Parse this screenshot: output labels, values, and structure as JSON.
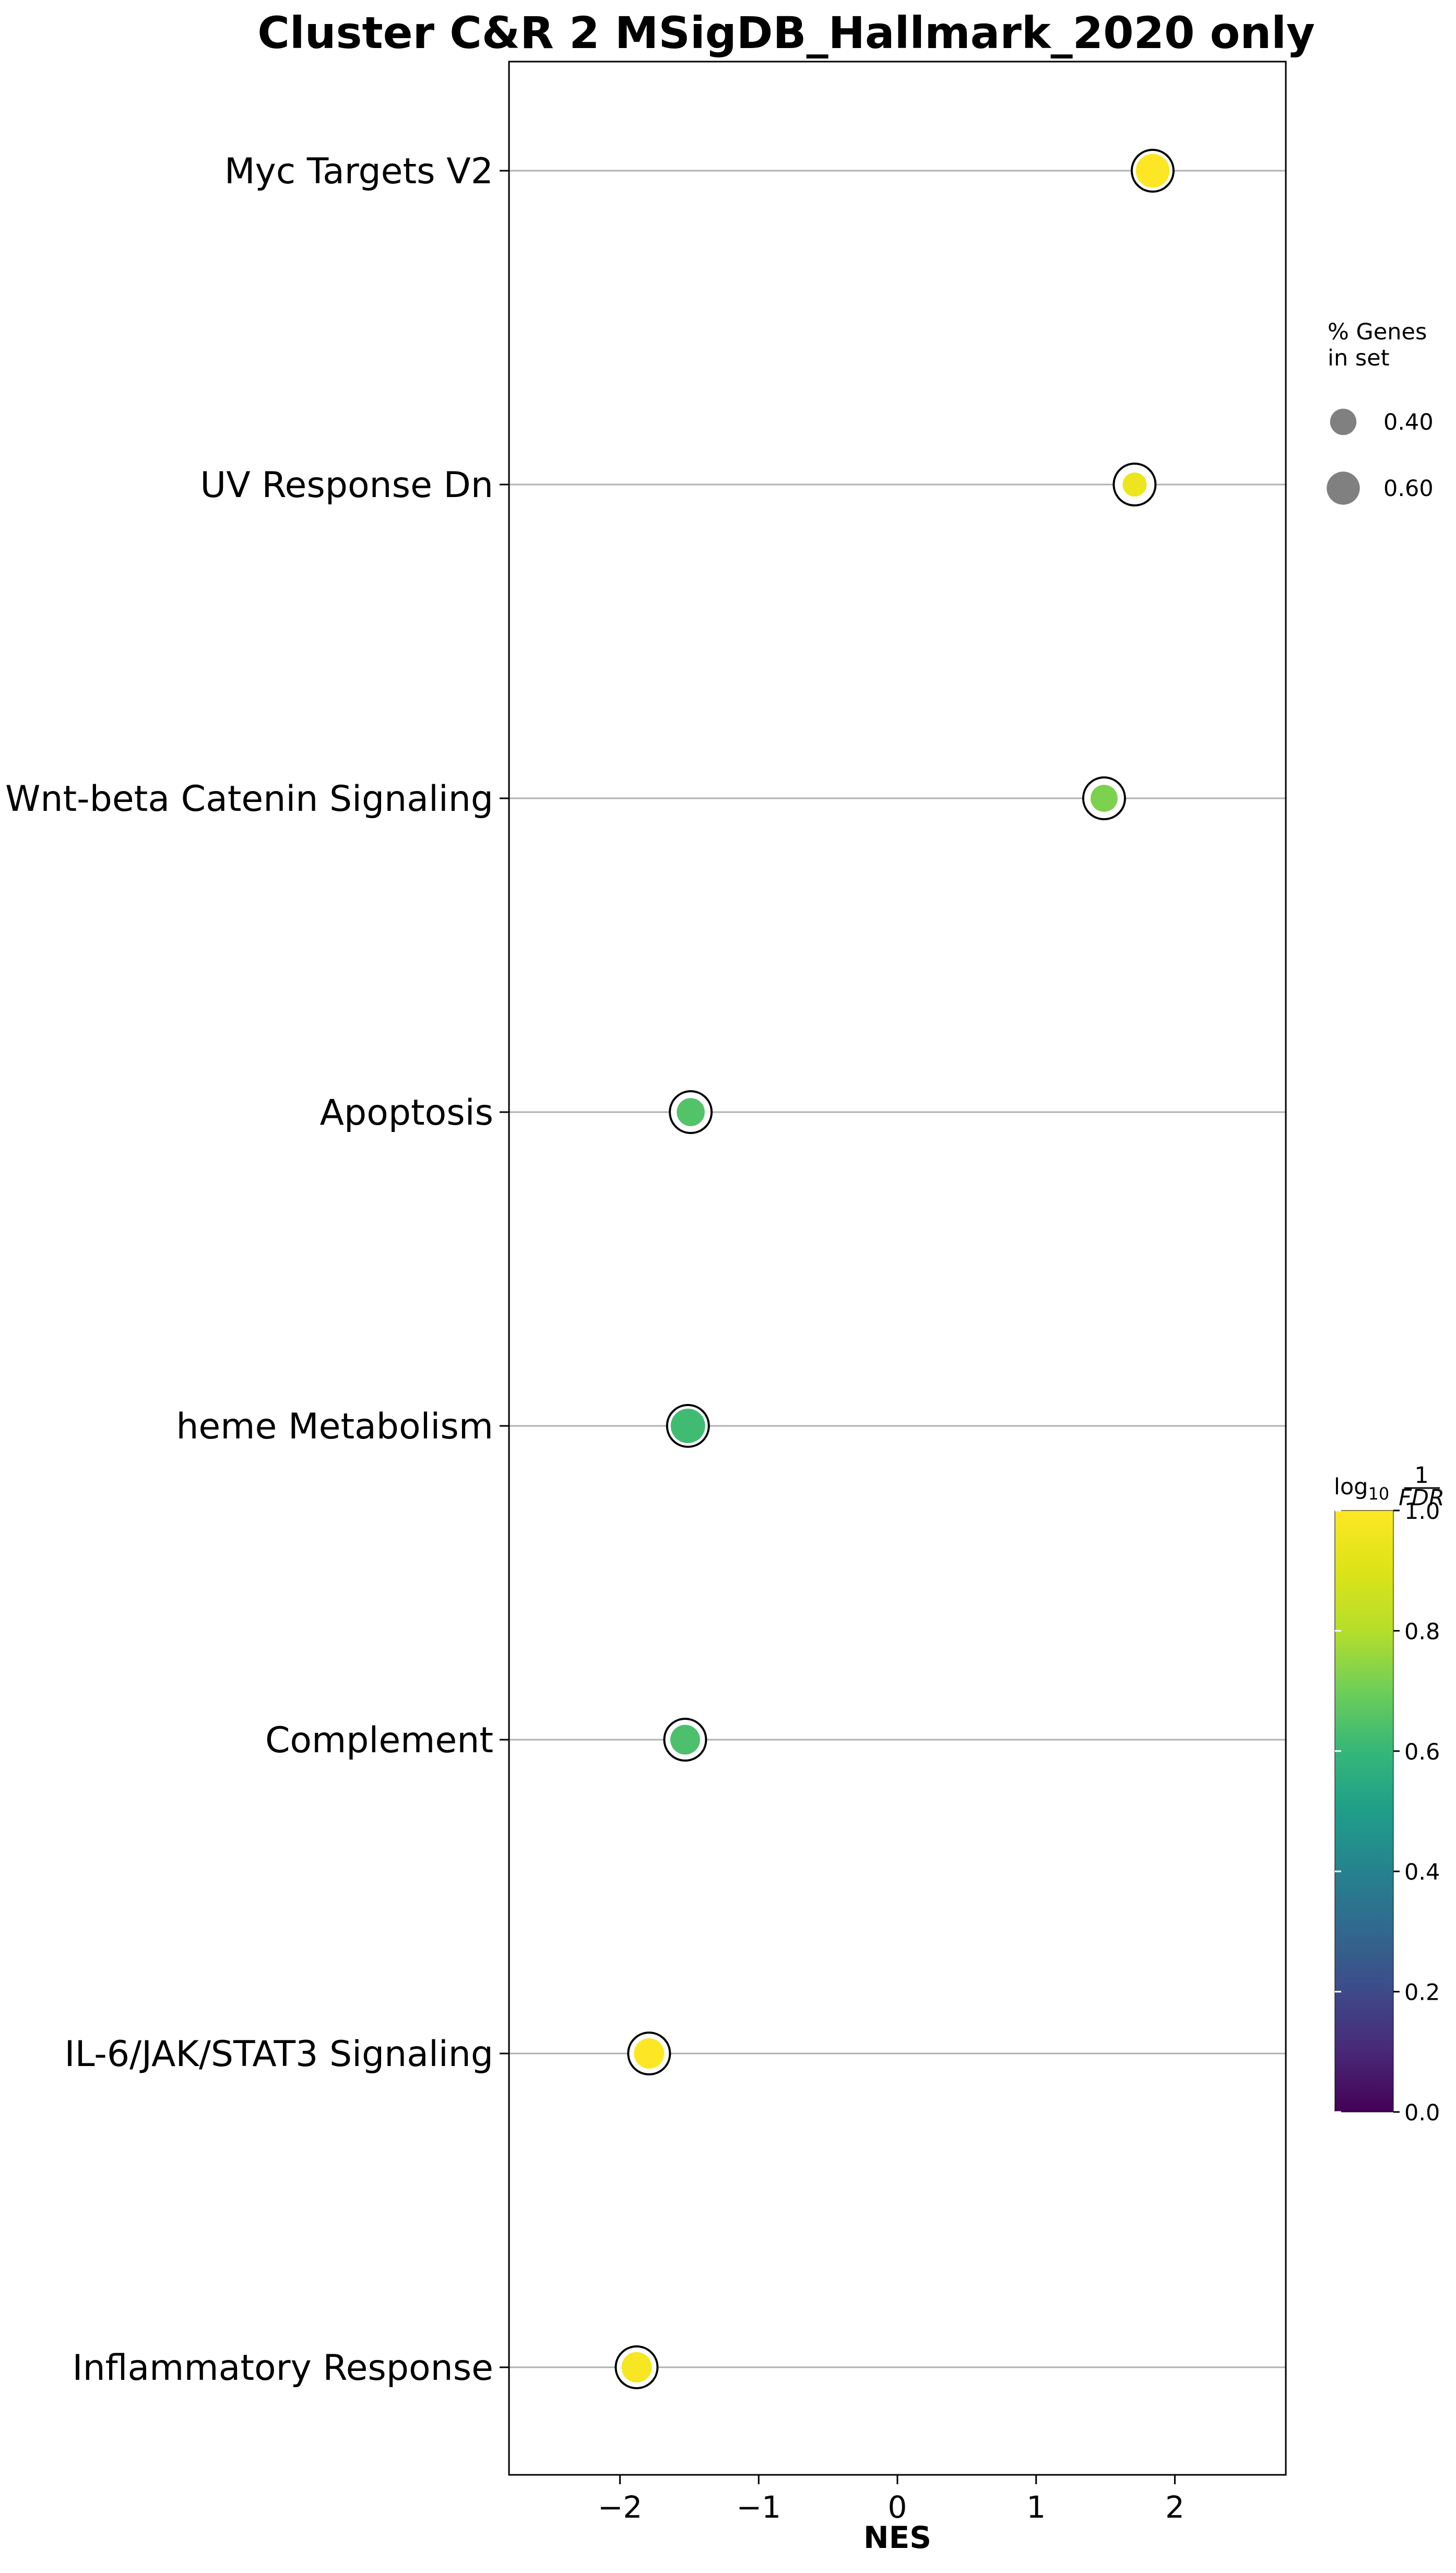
{
  "chart_data": {
    "type": "scatter",
    "title": "Cluster C&R 2 MSigDB_Hallmark_2020 only",
    "xlabel": "NES",
    "ylabel": "",
    "xlim": [
      -2.8,
      2.8
    ],
    "xticks": [
      {
        "value": -2,
        "label": "−2"
      },
      {
        "value": -1,
        "label": "−1"
      },
      {
        "value": 0,
        "label": "0"
      },
      {
        "value": 1,
        "label": "1"
      },
      {
        "value": 2,
        "label": "2"
      }
    ],
    "grid": "horizontal lines at each term",
    "categories": [
      "Myc Targets V2",
      "UV Response Dn",
      "Wnt-beta Catenin Signaling",
      "Apoptosis",
      "heme Metabolism",
      "Complement",
      "IL-6/JAK/STAT3 Signaling",
      "Inflammatory Response"
    ],
    "points": [
      {
        "term": "Myc Targets V2",
        "nes": 1.84,
        "log10_inv_fdr": 1.0,
        "pct_genes": 0.62
      },
      {
        "term": "UV Response Dn",
        "nes": 1.71,
        "log10_inv_fdr": 0.95,
        "pct_genes": 0.33
      },
      {
        "term": "Wnt-beta Catenin Signaling",
        "nes": 1.49,
        "log10_inv_fdr": 0.72,
        "pct_genes": 0.42
      },
      {
        "term": "Apoptosis",
        "nes": -1.49,
        "log10_inv_fdr": 0.65,
        "pct_genes": 0.45
      },
      {
        "term": "heme Metabolism",
        "nes": -1.51,
        "log10_inv_fdr": 0.62,
        "pct_genes": 0.64
      },
      {
        "term": "Complement",
        "nes": -1.53,
        "log10_inv_fdr": 0.64,
        "pct_genes": 0.5
      },
      {
        "term": "IL-6/JAK/STAT3 Signaling",
        "nes": -1.79,
        "log10_inv_fdr": 1.0,
        "pct_genes": 0.52
      },
      {
        "term": "Inflammatory Response",
        "nes": -1.88,
        "log10_inv_fdr": 0.98,
        "pct_genes": 0.52
      }
    ],
    "size_legend": {
      "title_line1": "% Genes",
      "title_line2": "in set",
      "entries": [
        {
          "value": 0.4,
          "label": "0.40"
        },
        {
          "value": 0.6,
          "label": "0.60"
        }
      ],
      "placement": "right-top"
    },
    "colorbar": {
      "label_prefix": "log",
      "label_sub": "10",
      "label_num": "1",
      "label_den": "FDR",
      "colormap": "viridis",
      "range": [
        0,
        1
      ],
      "ticks": [
        {
          "value": 0.0,
          "label": "0.0"
        },
        {
          "value": 0.2,
          "label": "0.2"
        },
        {
          "value": 0.4,
          "label": "0.4"
        },
        {
          "value": 0.6,
          "label": "0.6"
        },
        {
          "value": 0.8,
          "label": "0.8"
        },
        {
          "value": 1.0,
          "label": "1.0"
        }
      ],
      "placement": "right-bottom"
    },
    "colors": {
      "gridline": "#b0b0b0",
      "axes": "#000000",
      "legend_marker": "#808080",
      "ring": "#000000"
    }
  }
}
